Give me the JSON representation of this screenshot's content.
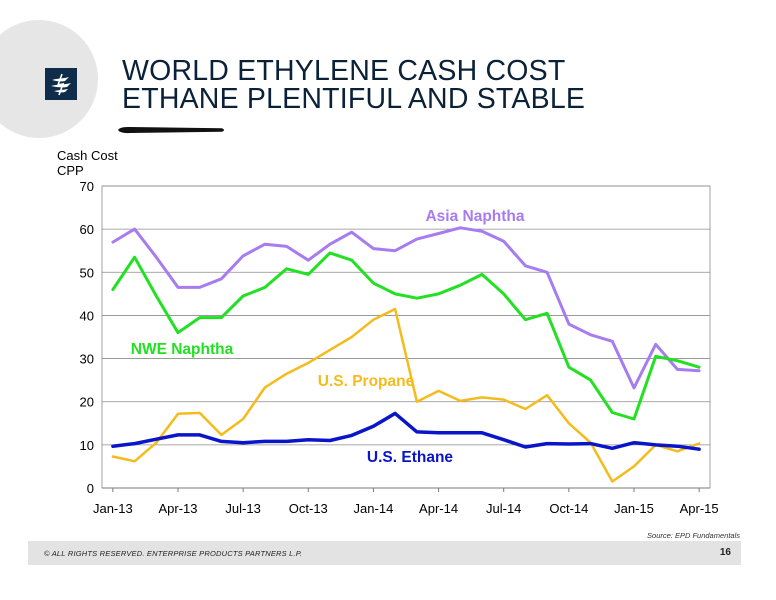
{
  "header": {
    "title_line1": "WORLD ETHYLENE CASH COST",
    "title_line2": "ETHANE PLENTIFUL AND STABLE"
  },
  "colors": {
    "title": "#0b2138",
    "logo": "#0f2c4a",
    "ethane": "#0a14c8",
    "propane": "#f5bb1c",
    "nwe_naphtha": "#22e022",
    "asia_naphtha": "#a77cf0"
  },
  "icons": {
    "logo": "enterprise-logo-icon"
  },
  "chart_data": {
    "type": "line",
    "ylabel": "Cash Cost\nCPP",
    "ylim": [
      0,
      70
    ],
    "yticks": [
      0,
      10,
      20,
      30,
      40,
      50,
      60,
      70
    ],
    "x": [
      "Jan-13",
      "Feb-13",
      "Mar-13",
      "Apr-13",
      "May-13",
      "Jun-13",
      "Jul-13",
      "Aug-13",
      "Sep-13",
      "Oct-13",
      "Nov-13",
      "Dec-13",
      "Jan-14",
      "Feb-14",
      "Mar-14",
      "Apr-14",
      "May-14",
      "Jun-14",
      "Jul-14",
      "Aug-14",
      "Sep-14",
      "Oct-14",
      "Nov-14",
      "Dec-14",
      "Jan-15",
      "Feb-15",
      "Mar-15",
      "Apr-15"
    ],
    "xtick_labels": [
      "Jan-13",
      "Apr-13",
      "Jul-13",
      "Oct-13",
      "Jan-14",
      "Apr-14",
      "Jul-14",
      "Oct-14",
      "Jan-15",
      "Apr-15"
    ],
    "grid": true,
    "series": [
      {
        "name": "Asia Naphtha",
        "color": "#a77cf0",
        "width": 3,
        "values": [
          57,
          60,
          53.5,
          46.5,
          46.5,
          48.5,
          53.8,
          56.5,
          56,
          52.8,
          56.5,
          59.3,
          55.5,
          55,
          57.7,
          59,
          60.3,
          59.5,
          57.2,
          51.5,
          50,
          38,
          35.5,
          34,
          23.2,
          33.3,
          27.5,
          27.2
        ]
      },
      {
        "name": "NWE Naphtha",
        "color": "#22e022",
        "width": 3,
        "values": [
          46,
          53.5,
          44.5,
          36,
          39.5,
          39.5,
          44.5,
          46.5,
          50.8,
          49.5,
          54.5,
          52.8,
          47.5,
          45,
          44,
          45,
          47,
          49.5,
          45,
          39,
          40.5,
          28,
          25,
          17.5,
          16,
          30.5,
          29.5,
          28
        ]
      },
      {
        "name": "U.S. Propane",
        "color": "#f5bb1c",
        "width": 2.5,
        "values": [
          7.3,
          6.2,
          10.5,
          17.2,
          17.4,
          12.3,
          16,
          23.3,
          26.5,
          29,
          32,
          35,
          39,
          41.5,
          20,
          22.5,
          20.2,
          21,
          20.5,
          18.3,
          21.5,
          15,
          10.5,
          1.5,
          5,
          10,
          8.5,
          10.3
        ]
      },
      {
        "name": "U.S. Ethane",
        "color": "#0a14c8",
        "width": 3.5,
        "values": [
          9.7,
          10.3,
          11.3,
          12.3,
          12.3,
          10.8,
          10.5,
          10.8,
          10.8,
          11.2,
          11,
          12.2,
          14.3,
          17.3,
          13,
          12.8,
          12.8,
          12.8,
          11.2,
          9.5,
          10.3,
          10.2,
          10.3,
          9.2,
          10.5,
          10,
          9.7,
          9
        ]
      }
    ],
    "annotations": [
      {
        "text": "Asia Naphtha",
        "series": "Asia Naphtha"
      },
      {
        "text": "NWE Naphtha",
        "series": "NWE Naphtha"
      },
      {
        "text": "U.S. Propane",
        "series": "U.S. Propane"
      },
      {
        "text": "U.S. Ethane",
        "series": "U.S. Ethane"
      }
    ],
    "source": "Source:  EPD Fundamentals"
  },
  "footer": {
    "copyright": "© ALL RIGHTS RESERVED. ENTERPRISE PRODUCTS PARTNERS L.P.",
    "page_number": "16"
  }
}
